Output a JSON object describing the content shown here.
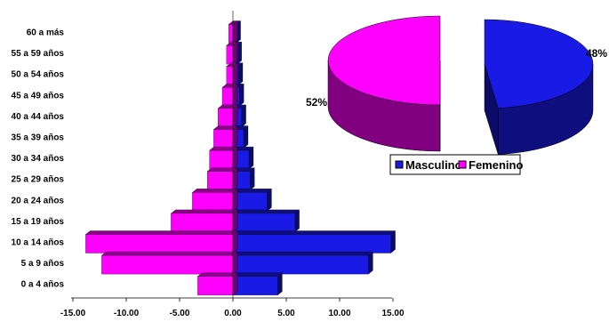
{
  "chart_data": [
    {
      "type": "bar",
      "orientation": "horizontal",
      "style": "3d population pyramid",
      "categories": [
        "0 a 4 años",
        "5 a 9 años",
        "10 a 14 años",
        "15 a 19 años",
        "20 a 24 años",
        "25 a 29 años",
        "30 a 34 años",
        "35 a 39 años",
        "40 a 44 años",
        "45 a 49 años",
        "50 a 54 años",
        "55 a 59 años",
        "60 a más"
      ],
      "series": [
        {
          "name": "Masculino",
          "color": "#1a1ae6",
          "values": [
            4.2,
            12.7,
            14.8,
            5.8,
            3.2,
            1.6,
            1.5,
            1.0,
            0.8,
            0.6,
            0.5,
            0.4,
            0.3
          ]
        },
        {
          "name": "Femenino",
          "color": "#ff00ff",
          "values": [
            -3.3,
            -12.3,
            -13.8,
            -5.8,
            -3.8,
            -2.4,
            -2.2,
            -1.8,
            -1.4,
            -1.0,
            -0.6,
            -0.6,
            -0.4
          ]
        }
      ],
      "xaxis": {
        "ticks": [
          "-15.00",
          "-10.00",
          "-5.00",
          "0.00",
          "5.00",
          "10.00",
          "15.00"
        ],
        "range": [
          -15,
          15
        ]
      },
      "grid": false
    },
    {
      "type": "pie",
      "style": "3d exploded",
      "slices": [
        {
          "name": "Masculino",
          "value": 48,
          "label": "48%",
          "color": "#1a1ae6"
        },
        {
          "name": "Femenino",
          "value": 52,
          "label": "52%",
          "color": "#ff00ff"
        }
      ],
      "legend": {
        "position": "below",
        "entries": [
          "Masculino",
          "Femenino"
        ]
      }
    }
  ]
}
